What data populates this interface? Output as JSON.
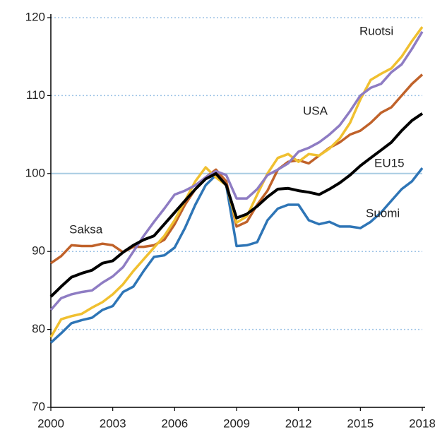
{
  "chart_data": {
    "type": "line",
    "x": [
      2000,
      2000.5,
      2001,
      2001.5,
      2002,
      2002.5,
      2003,
      2003.5,
      2004,
      2004.5,
      2005,
      2005.5,
      2006,
      2006.5,
      2007,
      2007.5,
      2008,
      2008.5,
      2009,
      2009.5,
      2010,
      2010.5,
      2011,
      2011.5,
      2012,
      2012.5,
      2013,
      2013.5,
      2014,
      2014.5,
      2015,
      2015.5,
      2016,
      2016.5,
      2017,
      2017.5,
      2018
    ],
    "series": [
      {
        "name": "Saksa",
        "color": "#c0622a",
        "values": [
          88.5,
          89.4,
          90.8,
          90.7,
          90.7,
          91,
          90.8,
          89.9,
          90.6,
          90.6,
          90.8,
          91.5,
          93.5,
          96,
          98,
          99.5,
          100.5,
          99,
          93.2,
          93.8,
          96,
          97.8,
          100.5,
          101.5,
          101.7,
          101.3,
          102.3,
          103.3,
          104,
          105,
          105.5,
          106.5,
          107.8,
          108.5,
          110,
          111.5,
          112.7
        ]
      },
      {
        "name": "Suomi",
        "color": "#2e75b6",
        "values": [
          78.3,
          79.5,
          80.8,
          81.2,
          81.5,
          82.5,
          83,
          84.8,
          85.5,
          87.5,
          89.3,
          89.5,
          90.5,
          93,
          96,
          98.5,
          99.8,
          98.5,
          90.7,
          90.8,
          91.2,
          94,
          95.5,
          96,
          96,
          94,
          93.5,
          93.8,
          93.2,
          93.2,
          93,
          93.8,
          95,
          96.5,
          98,
          99,
          100.7
        ]
      },
      {
        "name": "Ruotsi",
        "color": "#f0c030",
        "values": [
          79,
          81.3,
          81.7,
          82,
          82.8,
          83.5,
          84.5,
          85.8,
          87.5,
          89,
          90.5,
          92,
          94,
          96.5,
          99,
          100.8,
          99.5,
          98.5,
          93.7,
          94.5,
          97.3,
          100,
          102,
          102.5,
          101.5,
          102.5,
          102.3,
          103.2,
          104.5,
          106.5,
          109.5,
          112,
          112.8,
          113.5,
          115,
          117,
          118.8
        ]
      },
      {
        "name": "USA",
        "color": "#8e7cc3",
        "values": [
          82.5,
          84,
          84.5,
          84.8,
          85,
          86,
          86.8,
          88,
          90,
          92,
          93.8,
          95.5,
          97.3,
          97.8,
          98.5,
          99.5,
          100.3,
          99.8,
          96.8,
          96.8,
          98,
          99.8,
          100.5,
          101.3,
          102.8,
          103.3,
          104,
          105,
          106.2,
          108,
          110,
          111,
          111.5,
          113,
          114,
          116,
          118.2
        ]
      },
      {
        "name": "EU15",
        "color": "#000000",
        "values": [
          84.2,
          85.5,
          86.7,
          87.2,
          87.6,
          88.5,
          88.8,
          89.9,
          90.8,
          91.5,
          92,
          93.5,
          95,
          96.5,
          98,
          99.3,
          100,
          98.5,
          94.3,
          94.8,
          95.8,
          97,
          98,
          98.1,
          97.8,
          97.6,
          97.3,
          98,
          98.8,
          99.8,
          101,
          102,
          103,
          104,
          105.5,
          106.8,
          107.7
        ]
      }
    ],
    "xlim": [
      2000,
      2018
    ],
    "xticks": [
      2000,
      2003,
      2006,
      2009,
      2012,
      2015,
      2018
    ],
    "ylim": [
      70,
      120
    ],
    "yticks": [
      70,
      80,
      90,
      100,
      110,
      120
    ],
    "grid": true,
    "baseline": 100
  }
}
